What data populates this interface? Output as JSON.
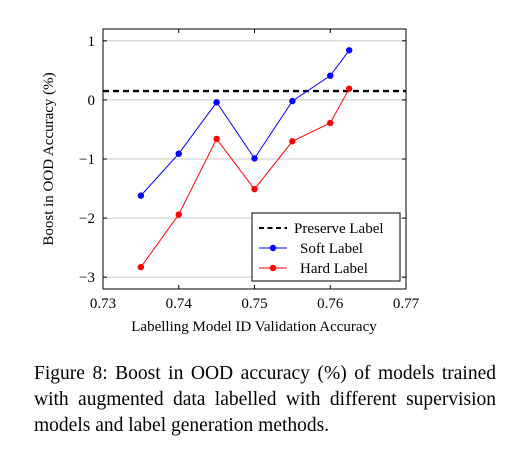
{
  "chart_data": {
    "type": "line",
    "xlabel": "Labelling Model ID Validation Accuracy",
    "ylabel": "Boost in OOD Accuracy (%)",
    "xlim": [
      0.73,
      0.77
    ],
    "ylim": [
      -3.2,
      1.2
    ],
    "xticks": [
      "0.73",
      "0.74",
      "0.75",
      "0.76",
      "0.77"
    ],
    "yticks": [
      "1",
      "0",
      "−1",
      "−2",
      "−3"
    ],
    "xtick_values": [
      0.73,
      0.74,
      0.75,
      0.76,
      0.77
    ],
    "ytick_values": [
      1,
      0,
      -1,
      -2,
      -3
    ],
    "grid": "horizontal",
    "legend_position": "bottom-right",
    "series": [
      {
        "name": "Preserve Label",
        "style": "dashed",
        "color": "#000000",
        "x": [
          0.73,
          0.77
        ],
        "y": [
          0.15,
          0.15
        ]
      },
      {
        "name": "Soft Label",
        "style": "line-marker",
        "color": "#0000ff",
        "x": [
          0.735,
          0.74,
          0.745,
          0.75,
          0.755,
          0.76,
          0.7625
        ],
        "y": [
          -1.62,
          -0.91,
          -0.04,
          -0.99,
          -0.02,
          0.41,
          0.84
        ]
      },
      {
        "name": "Hard Label",
        "style": "line-marker",
        "color": "#ff0000",
        "x": [
          0.735,
          0.74,
          0.745,
          0.75,
          0.755,
          0.76,
          0.7625
        ],
        "y": [
          -2.83,
          -1.94,
          -0.66,
          -1.51,
          -0.7,
          -0.39,
          0.19
        ]
      }
    ]
  },
  "caption": "Figure 8:  Boost in OOD accuracy (%) of models trained with augmented data labelled with different supervision models and label generation methods."
}
